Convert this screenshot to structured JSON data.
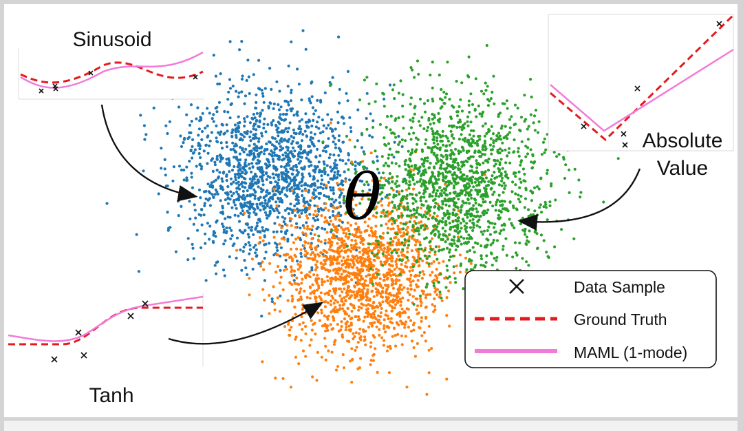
{
  "center_symbol": "θ",
  "tasks": [
    {
      "id": "sinusoid",
      "label": "Sinusoid"
    },
    {
      "id": "tanh",
      "label": "Tanh"
    },
    {
      "id": "absolute",
      "label_lines": [
        "Absolute",
        "Value"
      ]
    }
  ],
  "legend": {
    "items": [
      {
        "label": "Data Sample",
        "glyph": "x-mark-icon"
      },
      {
        "label": "Ground Truth",
        "glyph": "dashed-line-icon",
        "color": "#e41a1c"
      },
      {
        "label": "MAML (1-mode)",
        "glyph": "solid-line-icon",
        "color": "#f27ad8"
      }
    ]
  },
  "clusters": [
    {
      "name": "blue",
      "color": "#1f77b4"
    },
    {
      "name": "orange",
      "color": "#ff7f0e"
    },
    {
      "name": "green",
      "color": "#2ca02c"
    }
  ]
}
